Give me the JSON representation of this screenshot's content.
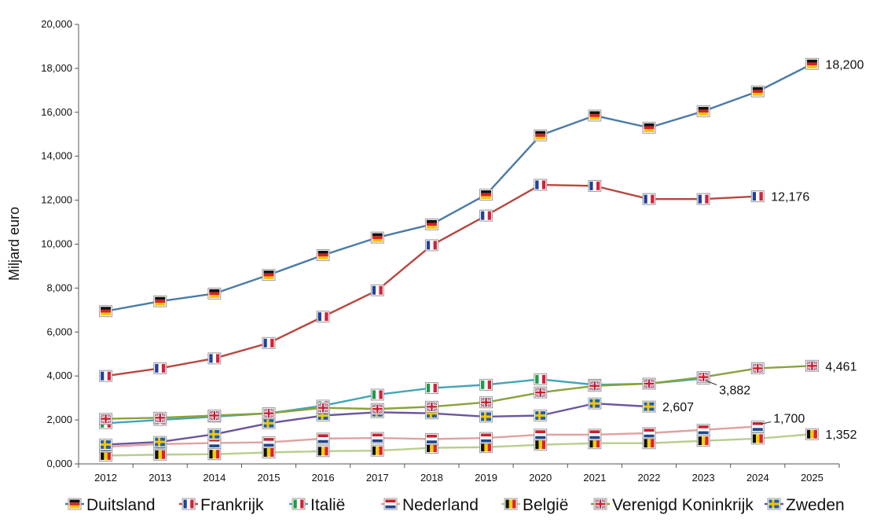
{
  "chart_data": {
    "type": "line",
    "ylabel": "Miljard euro",
    "ylim": [
      0,
      20000
    ],
    "y_ticks": [
      "0,000",
      "2,000",
      "4,000",
      "6,000",
      "8,000",
      "10,000",
      "12,000",
      "14,000",
      "16,000",
      "18,000",
      "20,000"
    ],
    "categories": [
      "2012",
      "2013",
      "2014",
      "2015",
      "2016",
      "2017",
      "2018",
      "2019",
      "2020",
      "2021",
      "2022",
      "2023",
      "2024",
      "2025"
    ],
    "legend_position": "bottom",
    "grid": false,
    "series": [
      {
        "name": "Duitsland",
        "color": "#4a7aa8",
        "icon": "flag-germany",
        "values": [
          6950,
          7400,
          7750,
          8600,
          9500,
          10300,
          10900,
          12250,
          14950,
          15850,
          15300,
          16050,
          16950,
          18200
        ],
        "end_label": "18,200"
      },
      {
        "name": "Frankrijk",
        "color": "#b8473e",
        "icon": "flag-france",
        "values": [
          4000,
          4350,
          4800,
          5500,
          6700,
          7900,
          9950,
          11300,
          12700,
          12650,
          12050,
          12050,
          12176,
          null
        ],
        "end_label": "12,176"
      },
      {
        "name": "Italië",
        "color": "#43a5b8",
        "icon": "flag-italy",
        "values": [
          1850,
          2000,
          2150,
          2300,
          2650,
          3150,
          3450,
          3600,
          3850,
          3600,
          3650,
          3882,
          null,
          null
        ],
        "end_label": "3,882"
      },
      {
        "name": "Nederland",
        "color": "#e0a2a0",
        "icon": "flag-netherlands",
        "values": [
          780,
          900,
          950,
          980,
          1150,
          1180,
          1130,
          1180,
          1330,
          1330,
          1400,
          1550,
          1700,
          null
        ],
        "end_label": "1,700"
      },
      {
        "name": "België",
        "color": "#b6cf8f",
        "icon": "flag-belgium",
        "values": [
          380,
          420,
          440,
          520,
          580,
          600,
          730,
          760,
          870,
          940,
          940,
          1050,
          1150,
          1352
        ],
        "end_label": "1,352"
      },
      {
        "name": "Verenigd Koninkrijk",
        "color": "#8aa23a",
        "icon": "flag-uk",
        "values": [
          2050,
          2100,
          2200,
          2300,
          2550,
          2500,
          2600,
          2800,
          3250,
          3550,
          3650,
          3950,
          4350,
          4461
        ],
        "end_label": "4,461"
      },
      {
        "name": "Zweden",
        "color": "#6a55a0",
        "icon": "flag-sweden",
        "values": [
          880,
          1000,
          1350,
          1850,
          2200,
          2350,
          2300,
          2150,
          2200,
          2750,
          2607,
          null,
          null,
          null
        ],
        "end_label": "2,607"
      }
    ]
  }
}
